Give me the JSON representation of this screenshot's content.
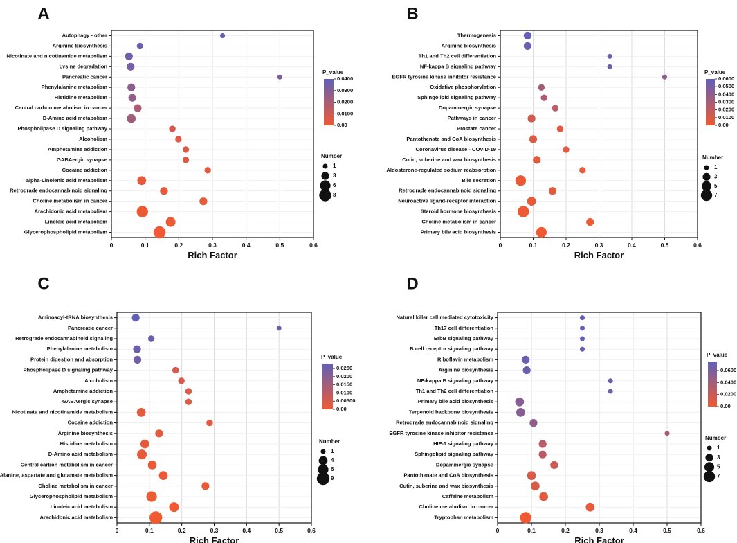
{
  "figure": {
    "xlabel": "Rich Factor",
    "legend_title": "P_value",
    "size_legend_title": "Number",
    "color_low": "#f05a32",
    "color_high": "#6060b8"
  },
  "chart_data": [
    {
      "panel": "A",
      "type": "scatter",
      "xlabel": "Rich Factor",
      "xlim": [
        0,
        0.6
      ],
      "xticks": [
        "0",
        "0.1",
        "0.2",
        "0.3",
        "0.4",
        "0.5",
        "0.6"
      ],
      "color_scale": {
        "title": "P_value",
        "min": 0,
        "max": 0.04,
        "ticks": [
          "0.0400",
          "0.0300",
          "0.0200",
          "0.0100",
          "0.00"
        ]
      },
      "size_scale": {
        "title": "Number",
        "ticks": [
          "1",
          "3",
          "6",
          "8"
        ],
        "values": [
          1,
          3,
          6,
          8
        ]
      },
      "points": [
        {
          "term": "Autophagy - other",
          "x": 0.33,
          "count": 1,
          "p": 0.04
        },
        {
          "term": "Arginine biosynthesis",
          "x": 0.085,
          "count": 2,
          "p": 0.036
        },
        {
          "term": "Nicotinate and nicotinamide metabolism",
          "x": 0.052,
          "count": 3,
          "p": 0.036
        },
        {
          "term": "Lysine degradation",
          "x": 0.057,
          "count": 3,
          "p": 0.034
        },
        {
          "term": "Pancreatic cancer",
          "x": 0.5,
          "count": 1,
          "p": 0.03
        },
        {
          "term": "Phenylalanine metabolism",
          "x": 0.059,
          "count": 3,
          "p": 0.028
        },
        {
          "term": "Histidine metabolism",
          "x": 0.062,
          "count": 3,
          "p": 0.026
        },
        {
          "term": "Central carbon metabolism in cancer",
          "x": 0.078,
          "count": 3,
          "p": 0.02
        },
        {
          "term": "D-Amino acid metabolism",
          "x": 0.059,
          "count": 4,
          "p": 0.022
        },
        {
          "term": "Phospholipase D signaling pathway",
          "x": 0.181,
          "count": 2,
          "p": 0.008
        },
        {
          "term": "Alcoholism",
          "x": 0.199,
          "count": 2,
          "p": 0.006
        },
        {
          "term": "Amphetamine addiction",
          "x": 0.221,
          "count": 2,
          "p": 0.005
        },
        {
          "term": "GABAergic synapse",
          "x": 0.221,
          "count": 2,
          "p": 0.005
        },
        {
          "term": "Cocaine addiction",
          "x": 0.286,
          "count": 2,
          "p": 0.004
        },
        {
          "term": "alpha-Linolenic acid metabolism",
          "x": 0.09,
          "count": 4,
          "p": 0.004
        },
        {
          "term": "Retrograde endocannabinoid signaling",
          "x": 0.156,
          "count": 3,
          "p": 0.003
        },
        {
          "term": "Choline metabolism in cancer",
          "x": 0.273,
          "count": 3,
          "p": 0.002
        },
        {
          "term": "Arachidonic acid metabolism",
          "x": 0.092,
          "count": 7,
          "p": 0.001
        },
        {
          "term": "Linoleic acid metabolism",
          "x": 0.176,
          "count": 5,
          "p": 0.001
        },
        {
          "term": "Glycerophospholipid metabolism",
          "x": 0.143,
          "count": 8,
          "p": 0.0005
        }
      ]
    },
    {
      "panel": "B",
      "type": "scatter",
      "xlabel": "Rich Factor",
      "xlim": [
        0,
        0.6
      ],
      "xticks": [
        "0",
        "0.1",
        "0.2",
        "0.3",
        "0.4",
        "0.5",
        "0.6"
      ],
      "color_scale": {
        "title": "P_value",
        "min": 0,
        "max": 0.06,
        "ticks": [
          "0.0600",
          "0.0500",
          "0.0400",
          "0.0300",
          "0.0200",
          "0.0100",
          "0.00"
        ]
      },
      "size_scale": {
        "title": "Number",
        "ticks": [
          "1",
          "3",
          "5",
          "7"
        ],
        "values": [
          1,
          3,
          5,
          7
        ]
      },
      "points": [
        {
          "term": "Thermogenesis",
          "x": 0.083,
          "count": 3,
          "p": 0.058
        },
        {
          "term": "Arginine biosynthesis",
          "x": 0.083,
          "count": 3,
          "p": 0.056
        },
        {
          "term": "Th1 and Th2 cell differentiation",
          "x": 0.333,
          "count": 1,
          "p": 0.056
        },
        {
          "term": "NF-kappa B signaling pathway",
          "x": 0.333,
          "count": 1,
          "p": 0.054
        },
        {
          "term": "EGFR tyrosine kinase inhibitor resistance",
          "x": 0.5,
          "count": 1,
          "p": 0.04
        },
        {
          "term": "Oxidative phosphorylation",
          "x": 0.125,
          "count": 2,
          "p": 0.032
        },
        {
          "term": "Sphingolipid signaling pathway",
          "x": 0.133,
          "count": 2,
          "p": 0.028
        },
        {
          "term": "Dopaminergic synapse",
          "x": 0.167,
          "count": 2,
          "p": 0.022
        },
        {
          "term": "Pathways in cancer",
          "x": 0.095,
          "count": 3,
          "p": 0.012
        },
        {
          "term": "Prostate cancer",
          "x": 0.182,
          "count": 2,
          "p": 0.008
        },
        {
          "term": "Pantothenate and CoA biosynthesis",
          "x": 0.1,
          "count": 3,
          "p": 0.008
        },
        {
          "term": "Coronavirus disease - COVID-19",
          "x": 0.2,
          "count": 2,
          "p": 0.007
        },
        {
          "term": "Cutin, suberine and wax biosynthesis",
          "x": 0.111,
          "count": 3,
          "p": 0.007
        },
        {
          "term": "Aldosterone-regulated sodium reabsorption",
          "x": 0.25,
          "count": 2,
          "p": 0.005
        },
        {
          "term": "Bile secretion",
          "x": 0.062,
          "count": 6,
          "p": 0.003
        },
        {
          "term": "Retrograde endocannabinoid signaling",
          "x": 0.159,
          "count": 3,
          "p": 0.004
        },
        {
          "term": "Neuroactive ligand-receptor interaction",
          "x": 0.095,
          "count": 4,
          "p": 0.002
        },
        {
          "term": "Steroid hormone biosynthesis",
          "x": 0.07,
          "count": 7,
          "p": 0.001
        },
        {
          "term": "Choline metabolism in cancer",
          "x": 0.273,
          "count": 3,
          "p": 0.001
        },
        {
          "term": "Primary bile acid biosynthesis",
          "x": 0.125,
          "count": 6,
          "p": 0.0005
        }
      ]
    },
    {
      "panel": "C",
      "type": "scatter",
      "xlabel": "Rich Factor",
      "xlim": [
        0,
        0.6
      ],
      "xticks": [
        "0",
        "0.1",
        "0.2",
        "0.3",
        "0.4",
        "0.5",
        "0.6"
      ],
      "color_scale": {
        "title": "P_value",
        "min": 0,
        "max": 0.028,
        "ticks": [
          "0.0250",
          "0.0200",
          "0.0150",
          "0.0100",
          "0.00500",
          "0.00"
        ]
      },
      "size_scale": {
        "title": "Number",
        "ticks": [
          "1",
          "4",
          "6",
          "9"
        ],
        "values": [
          1,
          4,
          6,
          9
        ]
      },
      "points": [
        {
          "term": "Aminoacyl-tRNA biosynthesis",
          "x": 0.058,
          "count": 3,
          "p": 0.028
        },
        {
          "term": "Pancreatic cancer",
          "x": 0.5,
          "count": 1,
          "p": 0.026
        },
        {
          "term": "Retrograde endocannabinoid signaling",
          "x": 0.106,
          "count": 2,
          "p": 0.026
        },
        {
          "term": "Phenylalanine metabolism",
          "x": 0.062,
          "count": 3,
          "p": 0.025
        },
        {
          "term": "Protein digestion and absorption",
          "x": 0.063,
          "count": 3,
          "p": 0.024
        },
        {
          "term": "Phospholipase D signaling pathway",
          "x": 0.181,
          "count": 2,
          "p": 0.006
        },
        {
          "term": "Alcoholism",
          "x": 0.199,
          "count": 2,
          "p": 0.005
        },
        {
          "term": "Amphetamine addiction",
          "x": 0.221,
          "count": 2,
          "p": 0.004
        },
        {
          "term": "GABAergic synapse",
          "x": 0.221,
          "count": 2,
          "p": 0.004
        },
        {
          "term": "Nicotinate and nicotinamide metabolism",
          "x": 0.075,
          "count": 4,
          "p": 0.003
        },
        {
          "term": "Cocaine addiction",
          "x": 0.286,
          "count": 2,
          "p": 0.003
        },
        {
          "term": "Arginine biosynthesis",
          "x": 0.13,
          "count": 3,
          "p": 0.003
        },
        {
          "term": "Histidine metabolism",
          "x": 0.086,
          "count": 4,
          "p": 0.002
        },
        {
          "term": "D-Amino acid metabolism",
          "x": 0.077,
          "count": 5,
          "p": 0.002
        },
        {
          "term": "Central carbon metabolism in cancer",
          "x": 0.109,
          "count": 4,
          "p": 0.001
        },
        {
          "term": "Alanine, aspartate and glutamate metabolism",
          "x": 0.143,
          "count": 4,
          "p": 0.001
        },
        {
          "term": "Choline metabolism in cancer",
          "x": 0.273,
          "count": 3,
          "p": 0.001
        },
        {
          "term": "Glycerophospholipid metabolism",
          "x": 0.107,
          "count": 6,
          "p": 0.0005
        },
        {
          "term": "Linoleic acid metabolism",
          "x": 0.176,
          "count": 5,
          "p": 0.0005
        },
        {
          "term": "Arachidonic acid metabolism",
          "x": 0.12,
          "count": 9,
          "p": 0.0001
        }
      ]
    },
    {
      "panel": "D",
      "type": "scatter",
      "xlabel": "Rich Factor",
      "xlim": [
        0,
        0.6
      ],
      "xticks": [
        "0",
        "0.1",
        "0.2",
        "0.3",
        "0.4",
        "0.5",
        "0.6"
      ],
      "color_scale": {
        "title": "P_value",
        "min": 0,
        "max": 0.075,
        "ticks": [
          "0.0600",
          "0.0400",
          "0.0200",
          "0.00"
        ]
      },
      "size_scale": {
        "title": "Number",
        "ticks": [
          "1",
          "3",
          "5",
          "7"
        ],
        "values": [
          1,
          3,
          5,
          7
        ]
      },
      "points": [
        {
          "term": "Natural killer cell mediated cytotoxicity",
          "x": 0.25,
          "count": 1,
          "p": 0.074
        },
        {
          "term": "Th17 cell differentiation",
          "x": 0.25,
          "count": 1,
          "p": 0.074
        },
        {
          "term": "ErbB signaling pathway",
          "x": 0.25,
          "count": 1,
          "p": 0.074
        },
        {
          "term": "B cell receptor signaling pathway",
          "x": 0.25,
          "count": 1,
          "p": 0.072
        },
        {
          "term": "Riboflavin metabolism",
          "x": 0.083,
          "count": 3,
          "p": 0.07
        },
        {
          "term": "Arginine biosynthesis",
          "x": 0.086,
          "count": 3,
          "p": 0.068
        },
        {
          "term": "NF-kappa B signaling pathway",
          "x": 0.333,
          "count": 1,
          "p": 0.07
        },
        {
          "term": "Th1 and Th2 cell differentiation",
          "x": 0.333,
          "count": 1,
          "p": 0.068
        },
        {
          "term": "Primary bile acid biosynthesis",
          "x": 0.065,
          "count": 4,
          "p": 0.054
        },
        {
          "term": "Terpenoid backbone biosynthesis",
          "x": 0.068,
          "count": 4,
          "p": 0.054
        },
        {
          "term": "Retrograde endocannabinoid signaling",
          "x": 0.106,
          "count": 3,
          "p": 0.05
        },
        {
          "term": "EGFR tyrosine kinase inhibitor resistance",
          "x": 0.5,
          "count": 1,
          "p": 0.04
        },
        {
          "term": "HIF-1 signaling pathway",
          "x": 0.133,
          "count": 3,
          "p": 0.03
        },
        {
          "term": "Sphingolipid signaling pathway",
          "x": 0.133,
          "count": 3,
          "p": 0.028
        },
        {
          "term": "Dopaminergic synapse",
          "x": 0.167,
          "count": 3,
          "p": 0.02
        },
        {
          "term": "Pantothenate and CoA biosynthesis",
          "x": 0.1,
          "count": 4,
          "p": 0.012
        },
        {
          "term": "Cutin, suberine and wax biosynthesis",
          "x": 0.111,
          "count": 4,
          "p": 0.012
        },
        {
          "term": "Caffeine metabolism",
          "x": 0.136,
          "count": 4,
          "p": 0.008
        },
        {
          "term": "Choline metabolism in cancer",
          "x": 0.273,
          "count": 4,
          "p": 0.004
        },
        {
          "term": "Tryptophan metabolism",
          "x": 0.083,
          "count": 7,
          "p": 0.001
        }
      ]
    }
  ]
}
